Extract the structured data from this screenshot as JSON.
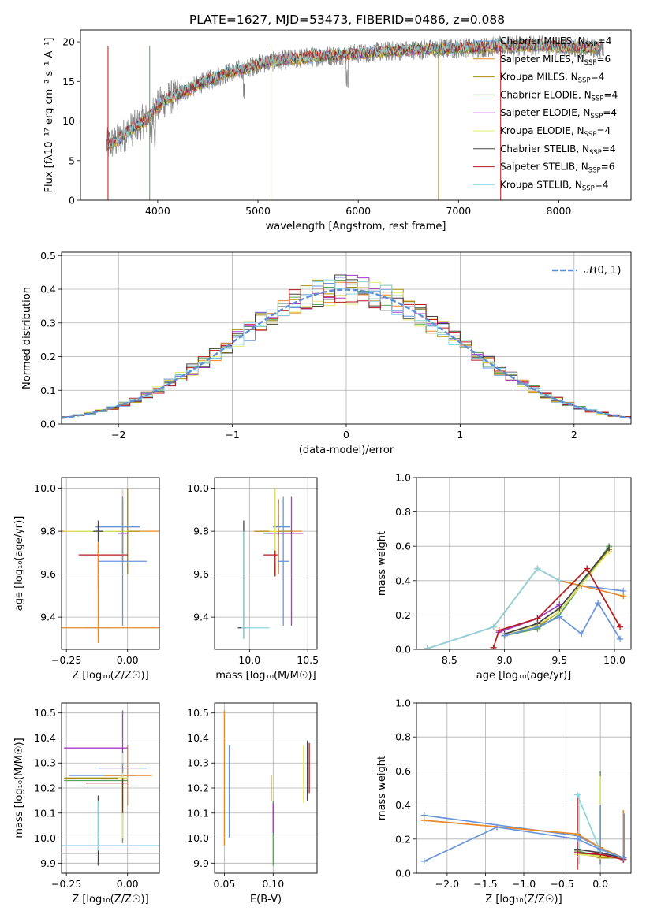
{
  "figure_title": "PLATE=1627, MJD=53473, FIBERID=0486, z=0.088",
  "model_colors": [
    "#6a95dd",
    "#e8892a",
    "#a7900e",
    "#5aa05a",
    "#a63bc9",
    "#e3e96b",
    "#444444",
    "#b51a1a",
    "#8ed5e0"
  ],
  "chart_data": [
    {
      "id": "spectrum",
      "type": "line",
      "xlabel": "wavelength [Angstrom, rest frame]",
      "ylabel": "Flux [fλ10⁻¹⁷ erg cm⁻² s⁻¹ A⁻¹]",
      "xlim": [
        3230,
        8720
      ],
      "ylim": [
        0,
        21.5
      ],
      "xticks": [
        4000,
        5000,
        6000,
        7000,
        8000
      ],
      "yticks": [
        0,
        5,
        10,
        15,
        20
      ],
      "grid": false,
      "legend_position": "right",
      "data_color": "#808080",
      "continuum": {
        "x": [
          3500,
          3600,
          3700,
          3800,
          3900,
          4000,
          4100,
          4200,
          4300,
          4400,
          4500,
          4600,
          4700,
          4800,
          4900,
          5000,
          5200,
          5400,
          5600,
          5800,
          6000,
          6200,
          6400,
          6600,
          6800,
          7000,
          7200,
          7400,
          7600,
          7800,
          8000,
          8200,
          8400
        ],
        "y": [
          7.0,
          7.5,
          8.6,
          9.5,
          10.3,
          12.0,
          12.8,
          13.3,
          13.9,
          14.6,
          15.1,
          15.6,
          16.1,
          16.4,
          16.7,
          17.2,
          17.6,
          17.9,
          18.2,
          18.3,
          18.5,
          18.7,
          18.9,
          19.0,
          19.1,
          19.2,
          19.3,
          19.4,
          19.5,
          19.5,
          19.4,
          19.3,
          19.2
        ]
      },
      "legend": [
        {
          "label": "Chabrier MILES, N",
          "sub": "SSP",
          "tail": "=4"
        },
        {
          "label": "Salpeter MILES, N",
          "sub": "SSP",
          "tail": "=6"
        },
        {
          "label": "Kroupa MILES, N",
          "sub": "SSP",
          "tail": "=4"
        },
        {
          "label": "Chabrier ELODIE, N",
          "sub": "SSP",
          "tail": "=4"
        },
        {
          "label": "Salpeter ELODIE, N",
          "sub": "SSP",
          "tail": "=4"
        },
        {
          "label": "Kroupa ELODIE, N",
          "sub": "SSP",
          "tail": "=4"
        },
        {
          "label": "Chabrier STELIB, N",
          "sub": "SSP",
          "tail": "=4"
        },
        {
          "label": "Salpeter STELIB, N",
          "sub": "SSP",
          "tail": "=6"
        },
        {
          "label": "Kroupa STELIB, N",
          "sub": "SSP",
          "tail": "=4"
        }
      ]
    },
    {
      "id": "residuals",
      "type": "histogram",
      "xlabel": "(data-model)/error",
      "ylabel": "Normed distribution",
      "xlim": [
        -2.5,
        2.5
      ],
      "ylim": [
        0,
        0.51
      ],
      "xticks": [
        -2,
        -1,
        0,
        1,
        2
      ],
      "yticks": [
        0.0,
        0.1,
        0.2,
        0.3,
        0.4,
        0.5
      ],
      "grid": true,
      "legend_position": "top-right",
      "gaussian_label": "𝒩(0, 1)",
      "bin_width": 0.1
    },
    {
      "id": "age-vs-z",
      "type": "errorbar",
      "xlabel": "Z [log₁₀(Z/Z☉)]",
      "ylabel": "age  [log₁₀(age/yr)]",
      "xlim": [
        -0.27,
        0.13
      ],
      "ylim": [
        9.25,
        10.05
      ],
      "xticks": [
        -0.25,
        0.0
      ],
      "yticks": [
        9.4,
        9.6,
        9.8,
        10.0
      ],
      "grid": true,
      "points": [
        {
          "x": -0.02,
          "y": 9.82,
          "xl": 0.11,
          "xh": 0.07,
          "yl": 0.12,
          "yh": 0.12
        },
        {
          "x": 0.0,
          "y": 9.8,
          "xl": 0.27,
          "xh": 0.27,
          "yl": 0.2,
          "yh": 0.2
        },
        {
          "x": 0.0,
          "y": 9.8,
          "xl": 0.15,
          "xh": 0.05,
          "yl": 0.2,
          "yh": 0.2
        },
        {
          "x": -0.02,
          "y": 9.8,
          "xl": 0.24,
          "xh": 0.02,
          "yl": 0.15,
          "yh": 0.15
        },
        {
          "x": -0.02,
          "y": 9.79,
          "xl": 0.02,
          "xh": 0.02,
          "yl": 0.12,
          "yh": 0.2
        },
        {
          "x": -0.02,
          "y": 9.8,
          "xl": 0.24,
          "xh": 0.02,
          "yl": 0.15,
          "yh": 0.2
        },
        {
          "x": -0.12,
          "y": 9.8,
          "xl": 0.02,
          "xh": 0.02,
          "yl": 0.05,
          "yh": 0.05
        },
        {
          "x": -0.12,
          "y": 9.69,
          "xl": 0.08,
          "xh": 0.12,
          "yl": 0.15,
          "yh": 0.05
        },
        {
          "x": -0.12,
          "y": 9.35,
          "xl": 0.05,
          "xh": 0.05,
          "yl": 0.02,
          "yh": 0.02
        },
        {
          "x": -0.02,
          "y": 9.66,
          "xl": 0.1,
          "xh": 0.1,
          "yl": 0.3,
          "yh": 0.3
        },
        {
          "x": -0.12,
          "y": 9.35,
          "xl": 0.15,
          "xh": 0.27,
          "yl": 0.07,
          "yh": 0.4
        }
      ]
    },
    {
      "id": "age-vs-mass",
      "type": "errorbar",
      "xlabel": "mass [log₁₀(M/M☉)]",
      "ylabel": "",
      "xlim": [
        9.7,
        10.58
      ],
      "ylim": [
        9.25,
        10.05
      ],
      "xticks": [
        10.0,
        10.5
      ],
      "yticks": [
        9.4,
        9.6,
        9.8,
        10.0
      ],
      "grid": true,
      "points": [
        {
          "x": 10.25,
          "y": 9.82,
          "xl": 0.05,
          "xh": 0.1,
          "yl": 0.05,
          "yh": 0.05
        },
        {
          "x": 10.25,
          "y": 9.8,
          "xl": 0.2,
          "xh": 0.2,
          "yl": 0.2,
          "yh": 0.15
        },
        {
          "x": 10.22,
          "y": 9.8,
          "xl": 0.18,
          "xh": 0.15,
          "yl": 0.2,
          "yh": 0.2
        },
        {
          "x": 10.22,
          "y": 9.79,
          "xl": 0.1,
          "xh": 0.05,
          "yl": 0.2,
          "yh": 0.17
        },
        {
          "x": 10.36,
          "y": 9.79,
          "xl": 0.2,
          "xh": 0.1,
          "yl": 0.43,
          "yh": 0.17
        },
        {
          "x": 10.22,
          "y": 9.8,
          "xl": 0.05,
          "xh": 0.02,
          "yl": 0.15,
          "yh": 0.2
        },
        {
          "x": 9.95,
          "y": 9.35,
          "xl": 0.05,
          "xh": 0.02,
          "yl": 0.05,
          "yh": 0.5
        },
        {
          "x": 10.22,
          "y": 9.69,
          "xl": 0.1,
          "xh": 0.02,
          "yl": 0.1,
          "yh": 0.02
        },
        {
          "x": 9.95,
          "y": 9.35,
          "xl": 0.02,
          "xh": 0.22,
          "yl": 0.05,
          "yh": 0.45
        },
        {
          "x": 10.29,
          "y": 9.66,
          "xl": 0.05,
          "xh": 0.05,
          "yl": 0.3,
          "yh": 0.3
        }
      ]
    },
    {
      "id": "weight-vs-age",
      "type": "line",
      "xlabel": "age  [log₁₀(age/yr)]",
      "ylabel": "mass weight",
      "xlim": [
        8.2,
        10.15
      ],
      "ylim": [
        0,
        1.0
      ],
      "xticks": [
        8.5,
        9.0,
        9.5,
        10.0
      ],
      "yticks": [
        0.0,
        0.2,
        0.4,
        0.6,
        0.8,
        1.0
      ],
      "grid": true,
      "series": [
        {
          "x": [
            8.3,
            8.9,
            9.3,
            9.5,
            9.7,
            10.08
          ],
          "y": [
            0.005,
            0.13,
            0.47,
            0.4,
            0.37,
            0.34
          ]
        },
        {
          "x": [
            8.3,
            8.9,
            9.3,
            9.5,
            9.7,
            10.08
          ],
          "y": [
            0.005,
            0.13,
            0.47,
            0.4,
            0.37,
            0.31
          ]
        },
        {
          "x": [
            9.0,
            9.3,
            9.5,
            9.95
          ],
          "y": [
            0.08,
            0.13,
            0.22,
            0.58
          ]
        },
        {
          "x": [
            9.0,
            9.3,
            9.5,
            9.95
          ],
          "y": [
            0.08,
            0.12,
            0.2,
            0.6
          ]
        },
        {
          "x": [
            8.95,
            9.3,
            9.5
          ],
          "y": [
            0.1,
            0.18,
            0.26
          ]
        },
        {
          "x": [
            9.0,
            9.3,
            9.5,
            9.95
          ],
          "y": [
            0.09,
            0.14,
            0.22,
            0.57
          ]
        },
        {
          "x": [
            9.0,
            9.3,
            9.5,
            9.95
          ],
          "y": [
            0.09,
            0.15,
            0.24,
            0.59
          ]
        },
        {
          "x": [
            8.9,
            8.95,
            9.3,
            9.75,
            10.05
          ],
          "y": [
            0.01,
            0.11,
            0.18,
            0.47,
            0.13
          ]
        },
        {
          "x": [
            8.3,
            8.9,
            9.3,
            9.5
          ],
          "y": [
            0.005,
            0.13,
            0.47,
            0.4
          ]
        },
        {
          "x": [
            9.0,
            9.3,
            9.5,
            9.7,
            9.85,
            10.05
          ],
          "y": [
            0.08,
            0.13,
            0.19,
            0.09,
            0.27,
            0.06
          ]
        }
      ]
    },
    {
      "id": "mass-vs-z",
      "type": "errorbar",
      "xlabel": "Z [log₁₀(Z/Z☉)]",
      "ylabel": "mass [log₁₀(M/M☉)]",
      "xlim": [
        -0.27,
        0.13
      ],
      "ylim": [
        9.86,
        10.54
      ],
      "xticks": [
        -0.25,
        0.0
      ],
      "yticks": [
        9.9,
        10.0,
        10.1,
        10.2,
        10.3,
        10.4,
        10.5
      ],
      "grid": true,
      "points": [
        {
          "x": -0.02,
          "y": 10.25,
          "xl": 0.22,
          "xh": 0.05,
          "yl": 0.1,
          "yh": 0.1
        },
        {
          "x": 0.0,
          "y": 10.25,
          "xl": 0.1,
          "xh": 0.1,
          "yl": 0.12,
          "yh": 0.12
        },
        {
          "x": -0.02,
          "y": 10.24,
          "xl": 0.24,
          "xh": 0.02,
          "yl": 0.25,
          "yh": 0.02
        },
        {
          "x": -0.02,
          "y": 10.23,
          "xl": 0.24,
          "xh": 0.02,
          "yl": 0.25,
          "yh": 0.02
        },
        {
          "x": -0.02,
          "y": 10.36,
          "xl": 0.24,
          "xh": 0.02,
          "yl": 0.02,
          "yh": 0.15
        },
        {
          "x": -0.02,
          "y": 10.24,
          "xl": 0.02,
          "xh": 0.02,
          "yl": 0.24,
          "yh": 0.1
        },
        {
          "x": -0.12,
          "y": 9.94,
          "xl": 0.15,
          "xh": 0.27,
          "yl": 0.05,
          "yh": 0.23
        },
        {
          "x": -0.02,
          "y": 10.22,
          "xl": 0.15,
          "xh": 0.02,
          "yl": 0.12,
          "yh": 0.02
        },
        {
          "x": -0.12,
          "y": 9.97,
          "xl": 0.15,
          "xh": 0.27,
          "yl": 0.02,
          "yh": 0.18
        },
        {
          "x": -0.02,
          "y": 10.28,
          "xl": 0.1,
          "xh": 0.1,
          "yl": 0.02,
          "yh": 0.02
        }
      ]
    },
    {
      "id": "mass-vs-ebv",
      "type": "errorbar",
      "xlabel": "E(B-V)",
      "ylabel": "",
      "xlim": [
        0.04,
        0.145
      ],
      "ylim": [
        9.86,
        10.54
      ],
      "xticks": [
        0.05,
        0.1
      ],
      "yticks": [
        9.9,
        10.0,
        10.1,
        10.2,
        10.3,
        10.4,
        10.5
      ],
      "grid": true,
      "points": [
        {
          "x": 0.055,
          "y": 10.25,
          "yl": 0.25,
          "yh": 0.12
        },
        {
          "x": 0.05,
          "y": 10.34,
          "yl": 0.37,
          "yh": 0.17
        },
        {
          "x": 0.098,
          "y": 10.2,
          "yl": 0.05,
          "yh": 0.05
        },
        {
          "x": 0.1,
          "y": 9.97,
          "yl": 0.08,
          "yh": 0.18
        },
        {
          "x": 0.1,
          "y": 10.08,
          "yl": 0.06,
          "yh": 0.06
        },
        {
          "x": 0.131,
          "y": 10.26,
          "yl": 0.12,
          "yh": 0.11
        },
        {
          "x": 0.135,
          "y": 10.27,
          "yl": 0.12,
          "yh": 0.12
        },
        {
          "x": 0.137,
          "y": 10.28,
          "yl": 0.1,
          "yh": 0.1
        }
      ]
    },
    {
      "id": "weight-vs-z",
      "type": "line",
      "xlabel": "Z [log₁₀(Z/Z☉)]",
      "ylabel": "mass weight",
      "xlim": [
        -2.4,
        0.4
      ],
      "ylim": [
        0,
        1.0
      ],
      "xticks": [
        -2.0,
        -1.5,
        -1.0,
        -0.5,
        0.0
      ],
      "yticks": [
        0.0,
        0.2,
        0.4,
        0.6,
        0.8,
        1.0
      ],
      "grid": true,
      "series": [
        {
          "x": [
            -2.3,
            -0.3,
            0.0,
            0.3
          ],
          "y": [
            0.34,
            0.22,
            0.15,
            0.08
          ]
        },
        {
          "x": [
            -2.3,
            -0.3,
            0.0,
            0.3
          ],
          "y": [
            0.31,
            0.23,
            0.15,
            0.09
          ]
        },
        {
          "x": [
            -0.3,
            0.0,
            0.3
          ],
          "y": [
            0.12,
            0.09,
            0.09
          ]
        },
        {
          "x": [
            -0.3,
            0.0,
            0.3
          ],
          "y": [
            0.13,
            0.1,
            0.09
          ]
        },
        {
          "x": [
            -0.3,
            0.0,
            0.3
          ],
          "y": [
            0.12,
            0.11,
            0.09
          ]
        },
        {
          "x": [
            -0.3,
            0.0,
            0.3
          ],
          "y": [
            0.11,
            0.1,
            0.09
          ]
        },
        {
          "x": [
            -0.3,
            0.0,
            0.3
          ],
          "y": [
            0.14,
            0.12,
            0.09
          ]
        },
        {
          "x": [
            -0.3,
            0.0,
            0.3
          ],
          "y": [
            0.12,
            0.11,
            0.08
          ]
        },
        {
          "x": [
            -0.3,
            0.0
          ],
          "y": [
            0.46,
            0.13
          ]
        },
        {
          "x": [
            -2.3,
            -1.35,
            -0.3,
            0.0,
            0.3
          ],
          "y": [
            0.07,
            0.27,
            0.2,
            0.14,
            0.09
          ]
        }
      ],
      "vbars": [
        {
          "x": -0.3,
          "y0": 0.02,
          "y1": 0.47,
          "c": 7
        },
        {
          "x": -0.28,
          "y0": 0.05,
          "y1": 0.47,
          "c": 8
        },
        {
          "x": 0.0,
          "y0": 0.05,
          "y1": 0.6,
          "c": 3
        },
        {
          "x": 0.0,
          "y0": 0.05,
          "y1": 0.57,
          "c": 5
        },
        {
          "x": 0.0,
          "y0": 0.05,
          "y1": 0.4,
          "c": 0
        },
        {
          "x": 0.3,
          "y0": 0.08,
          "y1": 0.37,
          "c": 1
        },
        {
          "x": 0.31,
          "y0": 0.08,
          "y1": 0.35,
          "c": 9
        }
      ]
    }
  ]
}
